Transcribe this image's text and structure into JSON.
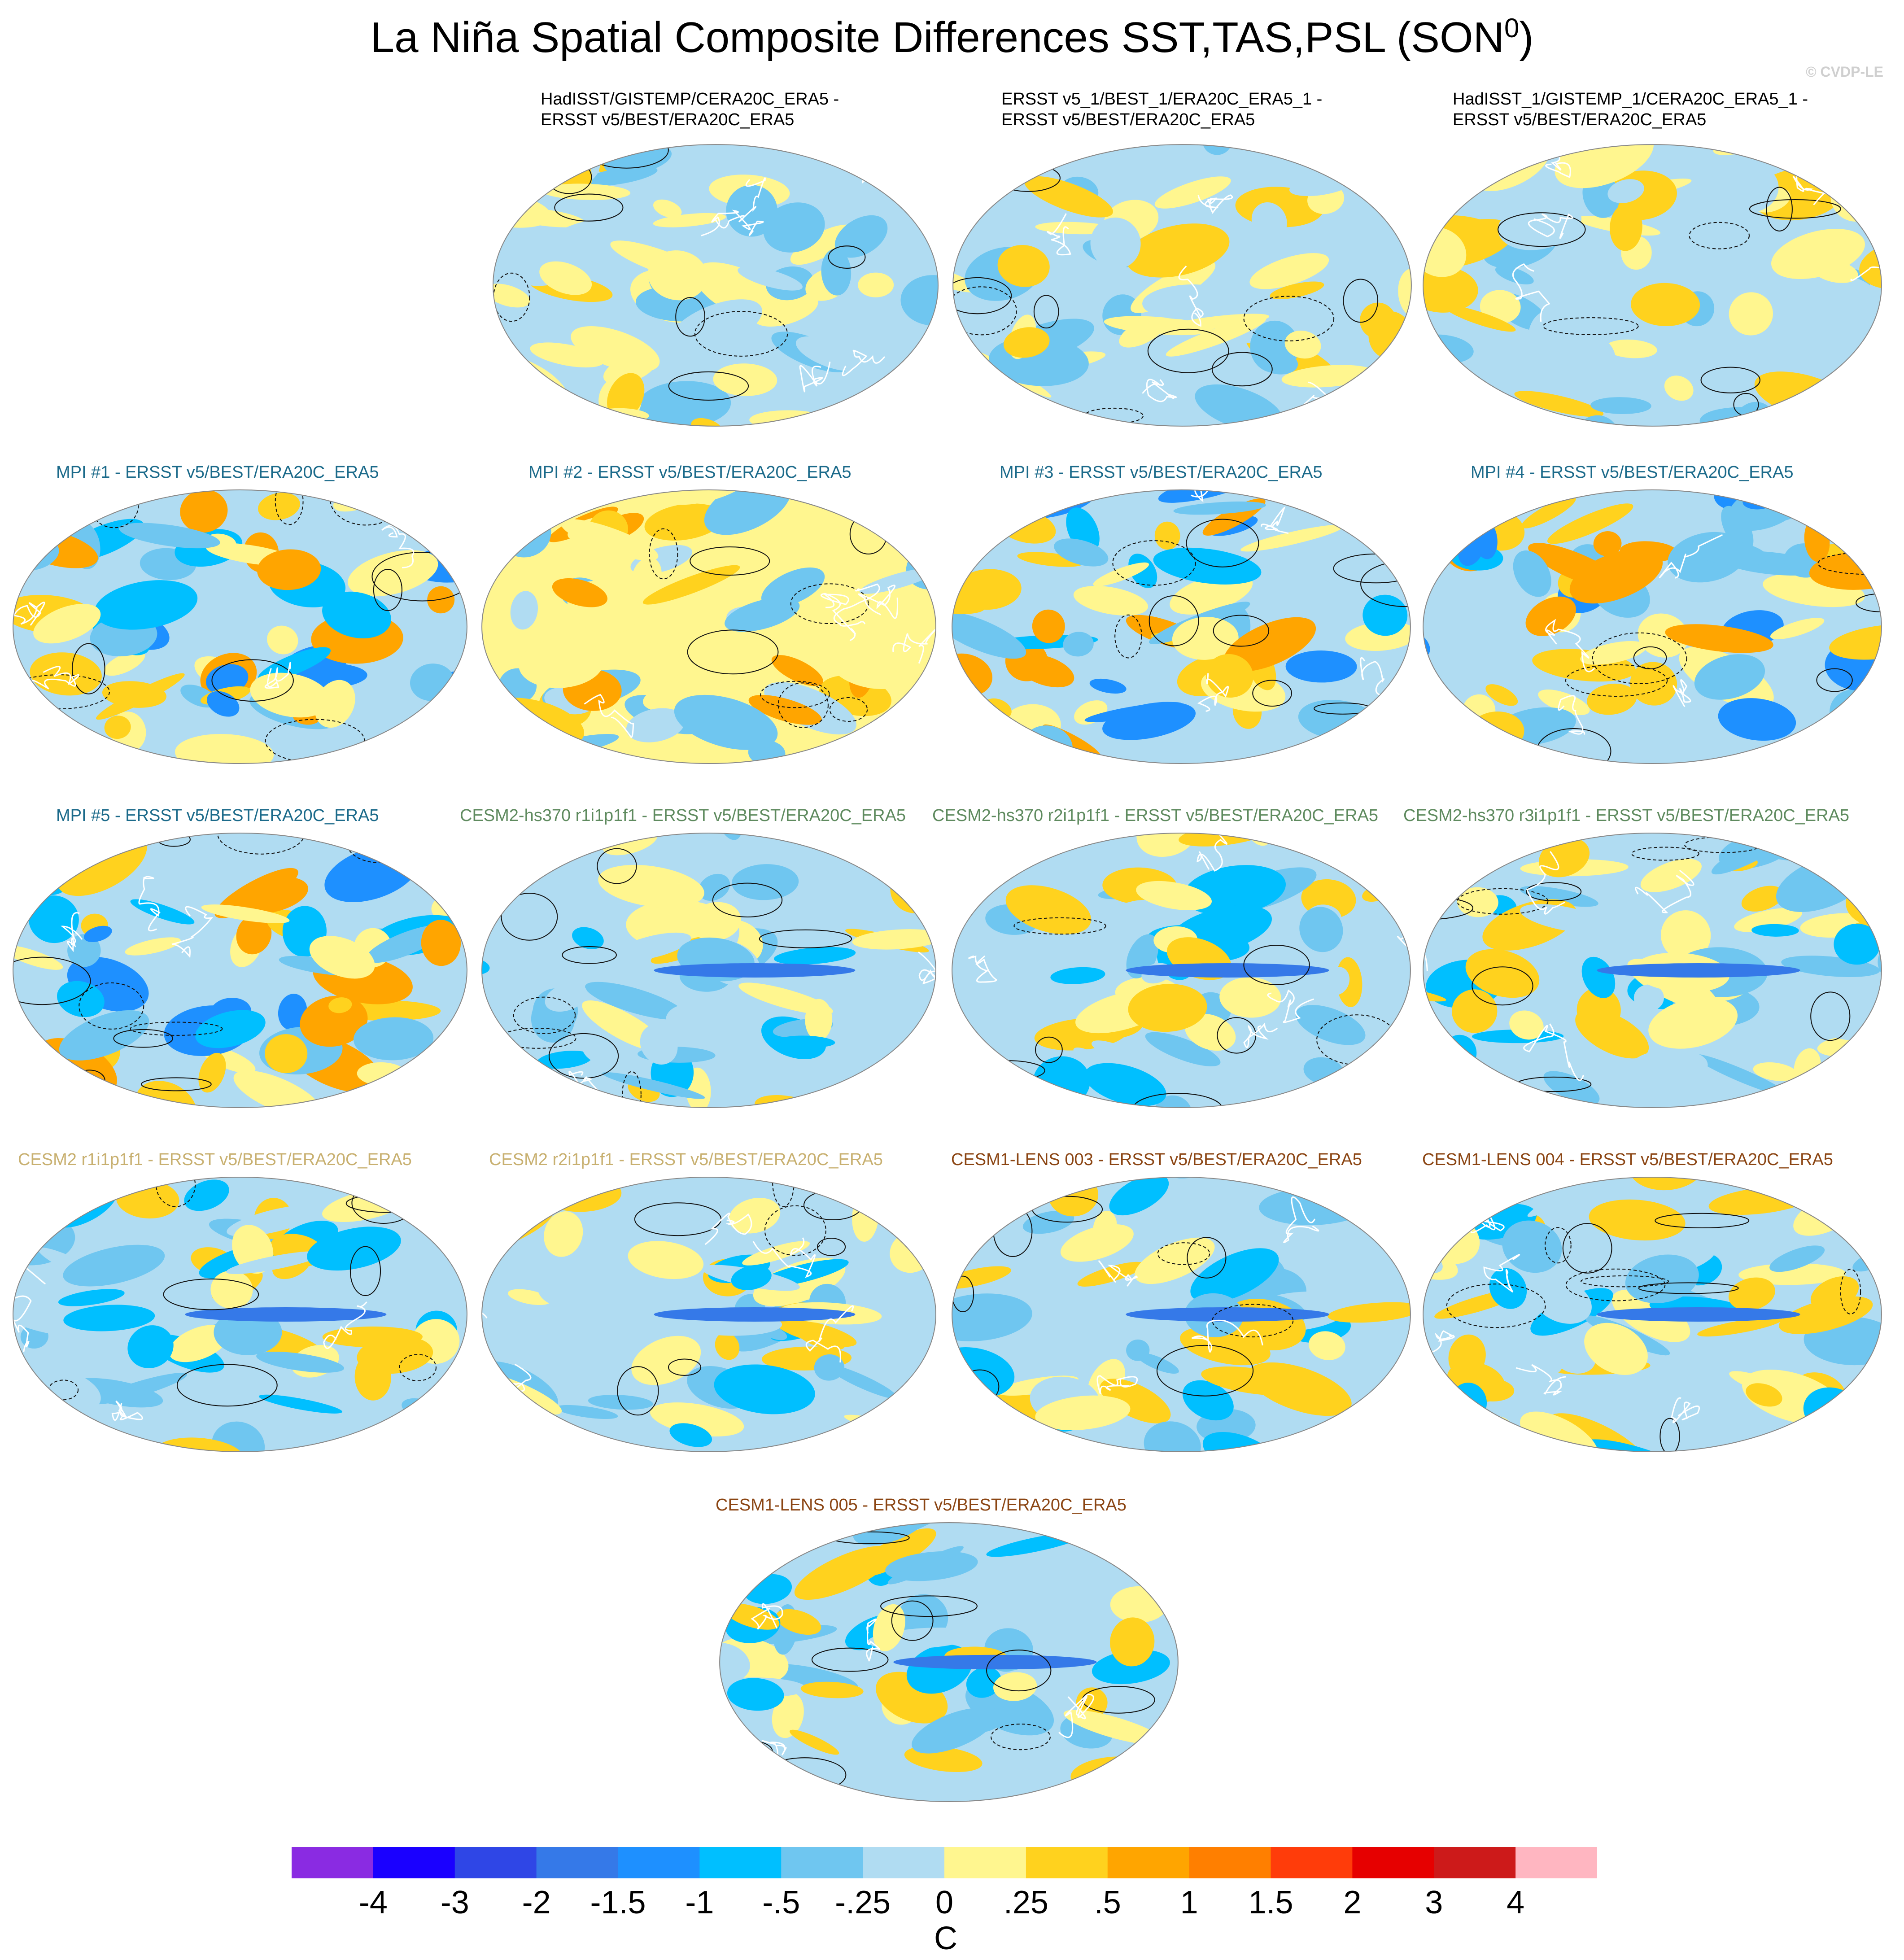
{
  "title": {
    "text": "La Niña Spatial Composite Differences SST,TAS,PSL (SON",
    "superscript": "0",
    "close": ")"
  },
  "watermark": "© CVDP-LE",
  "chart_data": {
    "type": "heatmap",
    "panels": [
      {
        "id": "p1",
        "title_lines": [
          "HadISST/GISTEMP/CERA20C_ERA5 -",
          "ERSST v5/BEST/ERA20C_ERA5"
        ],
        "title_color": "#000000",
        "dominant": "neutral"
      },
      {
        "id": "p2",
        "title_lines": [
          "ERSST v5_1/BEST_1/ERA20C_ERA5_1 -",
          "ERSST v5/BEST/ERA20C_ERA5"
        ],
        "title_color": "#000000",
        "dominant": "neutral"
      },
      {
        "id": "p3",
        "title_lines": [
          "HadISST_1/GISTEMP_1/CERA20C_ERA5_1 -",
          "ERSST v5/BEST/ERA20C_ERA5"
        ],
        "title_color": "#000000",
        "dominant": "neutral"
      },
      {
        "id": "p4",
        "title_lines": [
          "MPI #1 - ERSST v5/BEST/ERA20C_ERA5"
        ],
        "title_color": "#1b6a8a",
        "dominant": "mixed"
      },
      {
        "id": "p5",
        "title_lines": [
          "MPI #2 - ERSST v5/BEST/ERA20C_ERA5"
        ],
        "title_color": "#1b6a8a",
        "dominant": "warm"
      },
      {
        "id": "p6",
        "title_lines": [
          "MPI #3 - ERSST v5/BEST/ERA20C_ERA5"
        ],
        "title_color": "#1b6a8a",
        "dominant": "mixed"
      },
      {
        "id": "p7",
        "title_lines": [
          "MPI #4 - ERSST v5/BEST/ERA20C_ERA5"
        ],
        "title_color": "#1b6a8a",
        "dominant": "mixed"
      },
      {
        "id": "p8",
        "title_lines": [
          "MPI #5 - ERSST v5/BEST/ERA20C_ERA5"
        ],
        "title_color": "#1b6a8a",
        "dominant": "mixed"
      },
      {
        "id": "p9",
        "title_lines": [
          "CESM2-hs370 r1i1p1f1 - ERSST v5/BEST/ERA20C_ERA5"
        ],
        "title_color": "#5e8a5e",
        "dominant": "cool"
      },
      {
        "id": "p10",
        "title_lines": [
          "CESM2-hs370 r2i1p1f1 - ERSST v5/BEST/ERA20C_ERA5"
        ],
        "title_color": "#5e8a5e",
        "dominant": "cool"
      },
      {
        "id": "p11",
        "title_lines": [
          "CESM2-hs370 r3i1p1f1 - ERSST v5/BEST/ERA20C_ERA5"
        ],
        "title_color": "#5e8a5e",
        "dominant": "cool"
      },
      {
        "id": "p12",
        "title_lines": [
          "CESM2 r1i1p1f1 - ERSST v5/BEST/ERA20C_ERA5"
        ],
        "title_color": "#c8b070",
        "dominant": "cool"
      },
      {
        "id": "p13",
        "title_lines": [
          "CESM2 r2i1p1f1 - ERSST v5/BEST/ERA20C_ERA5"
        ],
        "title_color": "#c8b070",
        "dominant": "cool"
      },
      {
        "id": "p14",
        "title_lines": [
          "CESM1-LENS 003 - ERSST v5/BEST/ERA20C_ERA5"
        ],
        "title_color": "#8b4513",
        "dominant": "cool"
      },
      {
        "id": "p15",
        "title_lines": [
          "CESM1-LENS 004 - ERSST v5/BEST/ERA20C_ERA5"
        ],
        "title_color": "#8b4513",
        "dominant": "cool"
      },
      {
        "id": "p16",
        "title_lines": [
          "CESM1-LENS 005 - ERSST v5/BEST/ERA20C_ERA5"
        ],
        "title_color": "#8b4513",
        "dominant": "cool"
      }
    ],
    "colorbar": {
      "colors": [
        "#8a2be2",
        "#1a00ff",
        "#2f46e6",
        "#3579e8",
        "#1e90ff",
        "#00bfff",
        "#6fc6f0",
        "#b0dcf2",
        "#fff68f",
        "#ffd21e",
        "#ffa500",
        "#ff7f00",
        "#ff3c0a",
        "#e60000",
        "#cd1a1a",
        "#ffb6c1"
      ],
      "labels": [
        "-4",
        "-3",
        "-2",
        "-1.5",
        "-1",
        "-.5",
        "-.25",
        "0",
        ".25",
        ".5",
        "1",
        "1.5",
        "2",
        "3",
        "4"
      ],
      "units": "C"
    }
  }
}
